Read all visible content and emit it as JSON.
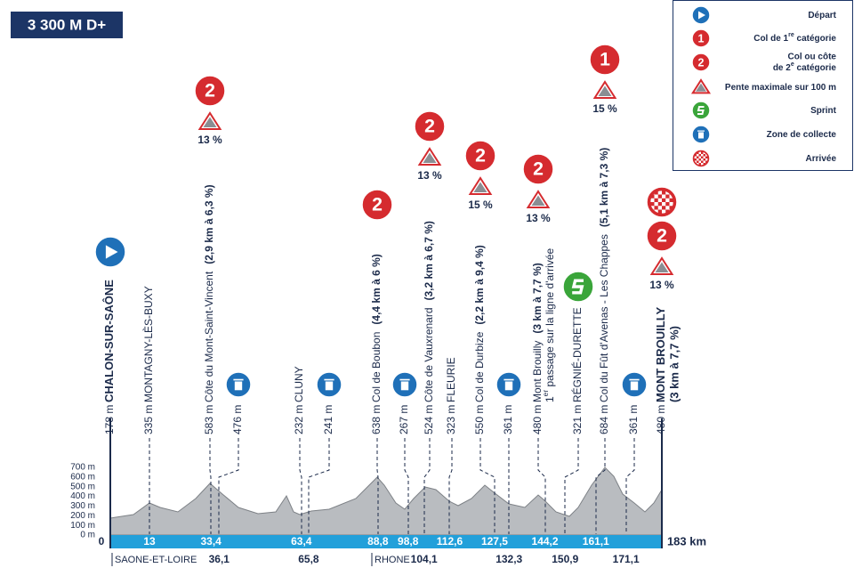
{
  "header": {
    "gain": "3 300 M D+"
  },
  "legend": [
    {
      "icon": "depart",
      "text": "Départ"
    },
    {
      "icon": "cat",
      "badge": "1",
      "text": "Col de 1",
      "sup": "re",
      "rest": " catégorie"
    },
    {
      "icon": "cat",
      "badge": "2",
      "text": "Col ou côte",
      "text2": "de 2",
      "sup": "e",
      "rest": " catégorie"
    },
    {
      "icon": "tri",
      "text": "Pente maximale sur 100 m"
    },
    {
      "icon": "sprint",
      "text": "Sprint"
    },
    {
      "icon": "collecte",
      "text": "Zone de collecte"
    },
    {
      "icon": "finish",
      "text": "Arrivée"
    }
  ],
  "points": [
    {
      "alt": "178 m",
      "name": "CHALON-SUR-SAÔNE",
      "bold": true,
      "marker": "depart"
    },
    {
      "alt": "335 m",
      "name": "MONTAGNY-LÈS-BUXY"
    },
    {
      "alt": "583 m",
      "name": "Côte du Mont-Saint-Vincent",
      "detail": "(2,9 km à 6,3 %)",
      "climb": {
        "badge": "2",
        "pct": "13 %"
      }
    },
    {
      "alt": "476 m",
      "marker": "collecte"
    },
    {
      "alt": "232 m",
      "name": "CLUNY"
    },
    {
      "alt": "241 m",
      "marker": "collecte"
    },
    {
      "alt": "638 m",
      "name": "Col de Boubon",
      "detail": "(4,4 km à 6 %)",
      "climb": {
        "badge": "2"
      }
    },
    {
      "alt": "267 m",
      "marker": "collecte"
    },
    {
      "alt": "524 m",
      "name": "Côte de Vauxrenard",
      "detail": "(3,2 km à 6,7 %)",
      "climb": {
        "badge": "2",
        "pct": "13 %"
      }
    },
    {
      "alt": "323 m",
      "name": "FLEURIE"
    },
    {
      "alt": "550 m",
      "name": "Col de Durbize",
      "detail": "(2,2 km à 9,4 %)",
      "climb": {
        "badge": "2",
        "pct": "15 %"
      }
    },
    {
      "alt": "361 m",
      "marker": "collecte"
    },
    {
      "alt": "480 m",
      "name": "Mont Brouilly",
      "detail": "(3 km à 7,7 %)",
      "note": {
        "text": "1",
        "sup": "er",
        "rest": " passage sur la ligne d'arrivée"
      },
      "climb": {
        "badge": "2",
        "pct": "13 %"
      }
    },
    {
      "alt": "321 m",
      "name": "RÉGNIÉ-DURETTE",
      "marker": "sprint"
    },
    {
      "alt": "684 m",
      "name": "Col du Fût d'Avenas - Les Chappes",
      "detail": "(5,1 km à 7,3 %)",
      "climb": {
        "badge": "1",
        "pct": "15 %"
      }
    },
    {
      "alt": "361 m",
      "marker": "collecte"
    },
    {
      "alt": "480 m",
      "name": "MONT BROUILLY",
      "detail2": "(3 km à 7,7 %)",
      "bold": true,
      "marker": "finish",
      "climb": {
        "badge": "2",
        "pct": "13 %"
      }
    }
  ],
  "elevation_axis": [
    "700 m",
    "600 m",
    "500 m",
    "400 m",
    "300 m",
    "200 m",
    "100 m",
    "0 m"
  ],
  "km": {
    "start": "0",
    "end": "183 km",
    "bar": [
      "13",
      "33,4",
      "63,4",
      "88,8",
      "98,8",
      "112,6",
      "127,5",
      "144,2",
      "161,1"
    ],
    "below": [
      "36,1",
      "65,8",
      "104,1",
      "132,3",
      "150,9",
      "171,1"
    ]
  },
  "departments": [
    "SAONE-ET-LOIRE",
    "RHONE"
  ]
}
